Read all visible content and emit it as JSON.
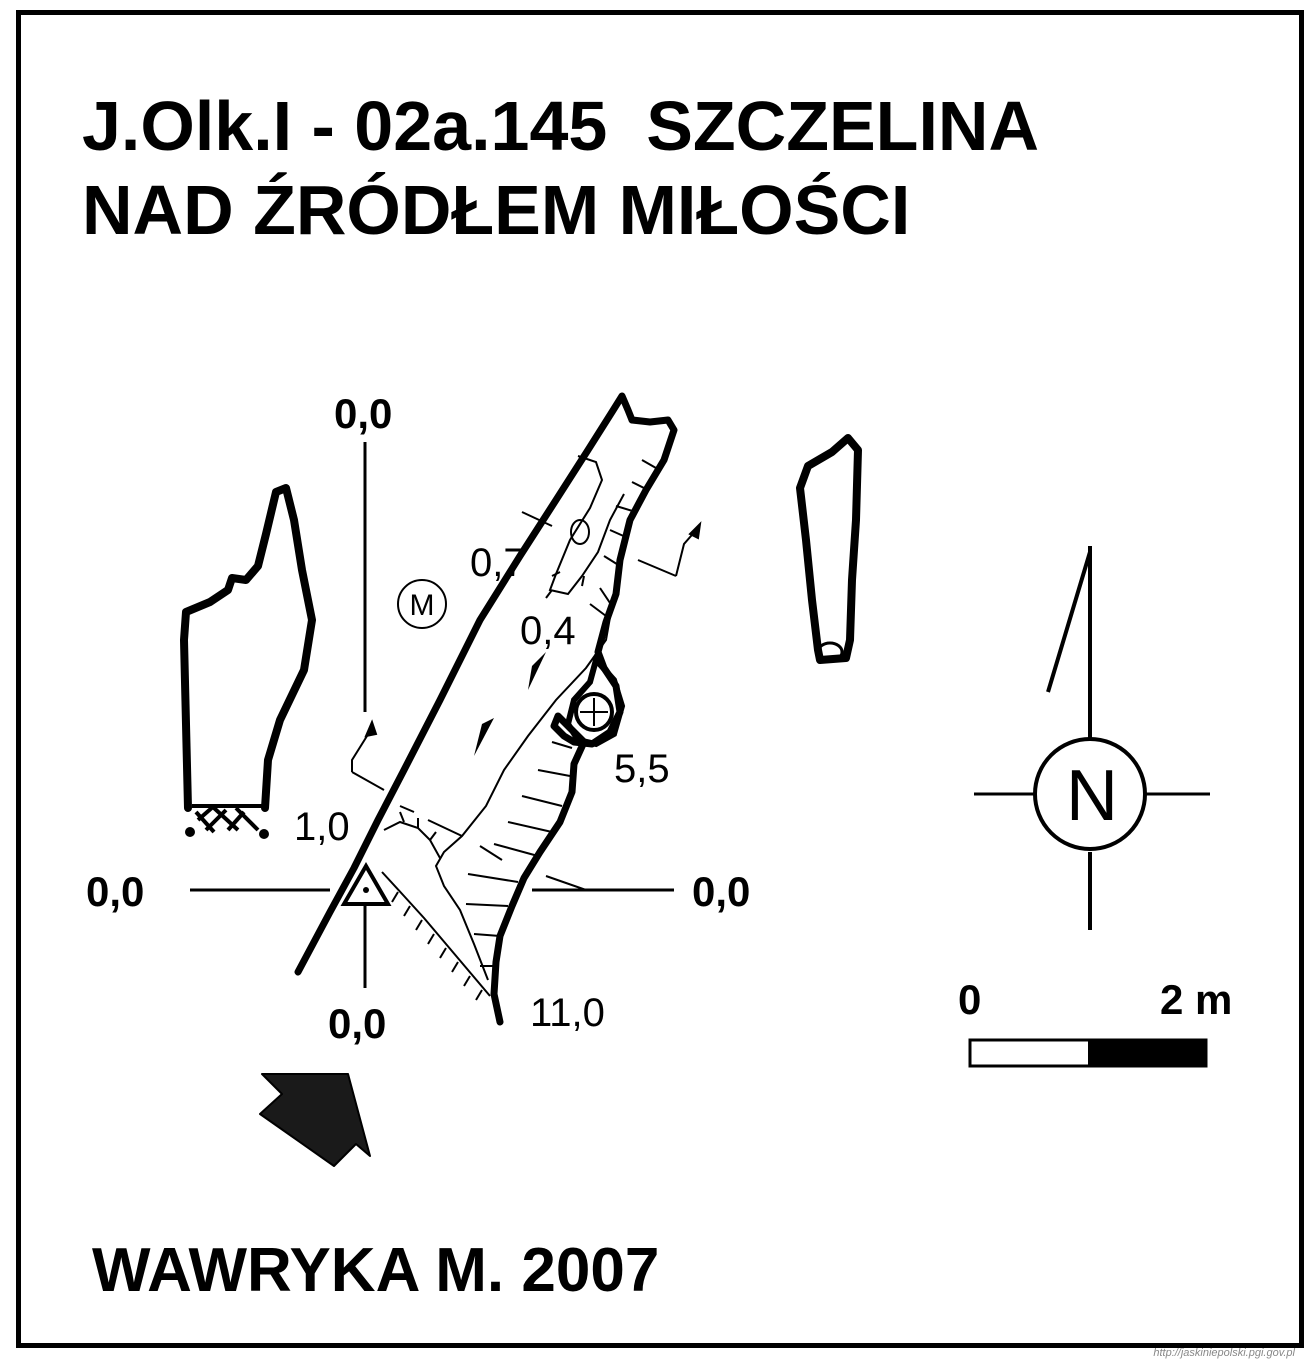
{
  "title": {
    "line1": "J.Olk.I - 02a.145  SZCZELINA",
    "line2": "NAD ŹRÓDŁEM MIŁOŚCI"
  },
  "author": "WAWRYKA M. 2007",
  "source_url": "http://jaskiniepolski.pgi.gov.pl",
  "datum_labels": {
    "top": "0,0",
    "left": "0,0",
    "right": "0,0",
    "bottom": "0,0"
  },
  "depths": {
    "d1": "0,7",
    "d2": "0,4",
    "d3": "5,5",
    "d4": "1,0",
    "d5": "11,0"
  },
  "symbols": {
    "m_marker": "M",
    "north": "N"
  },
  "scale_bar": {
    "start_label": "0",
    "end_label": "2 m"
  },
  "icons": {
    "entrance": "entrance-arrow-icon",
    "survey_point": "survey-point-triangle-icon",
    "north": "north-compass-icon",
    "shaft": "shaft-symbol-icon"
  }
}
